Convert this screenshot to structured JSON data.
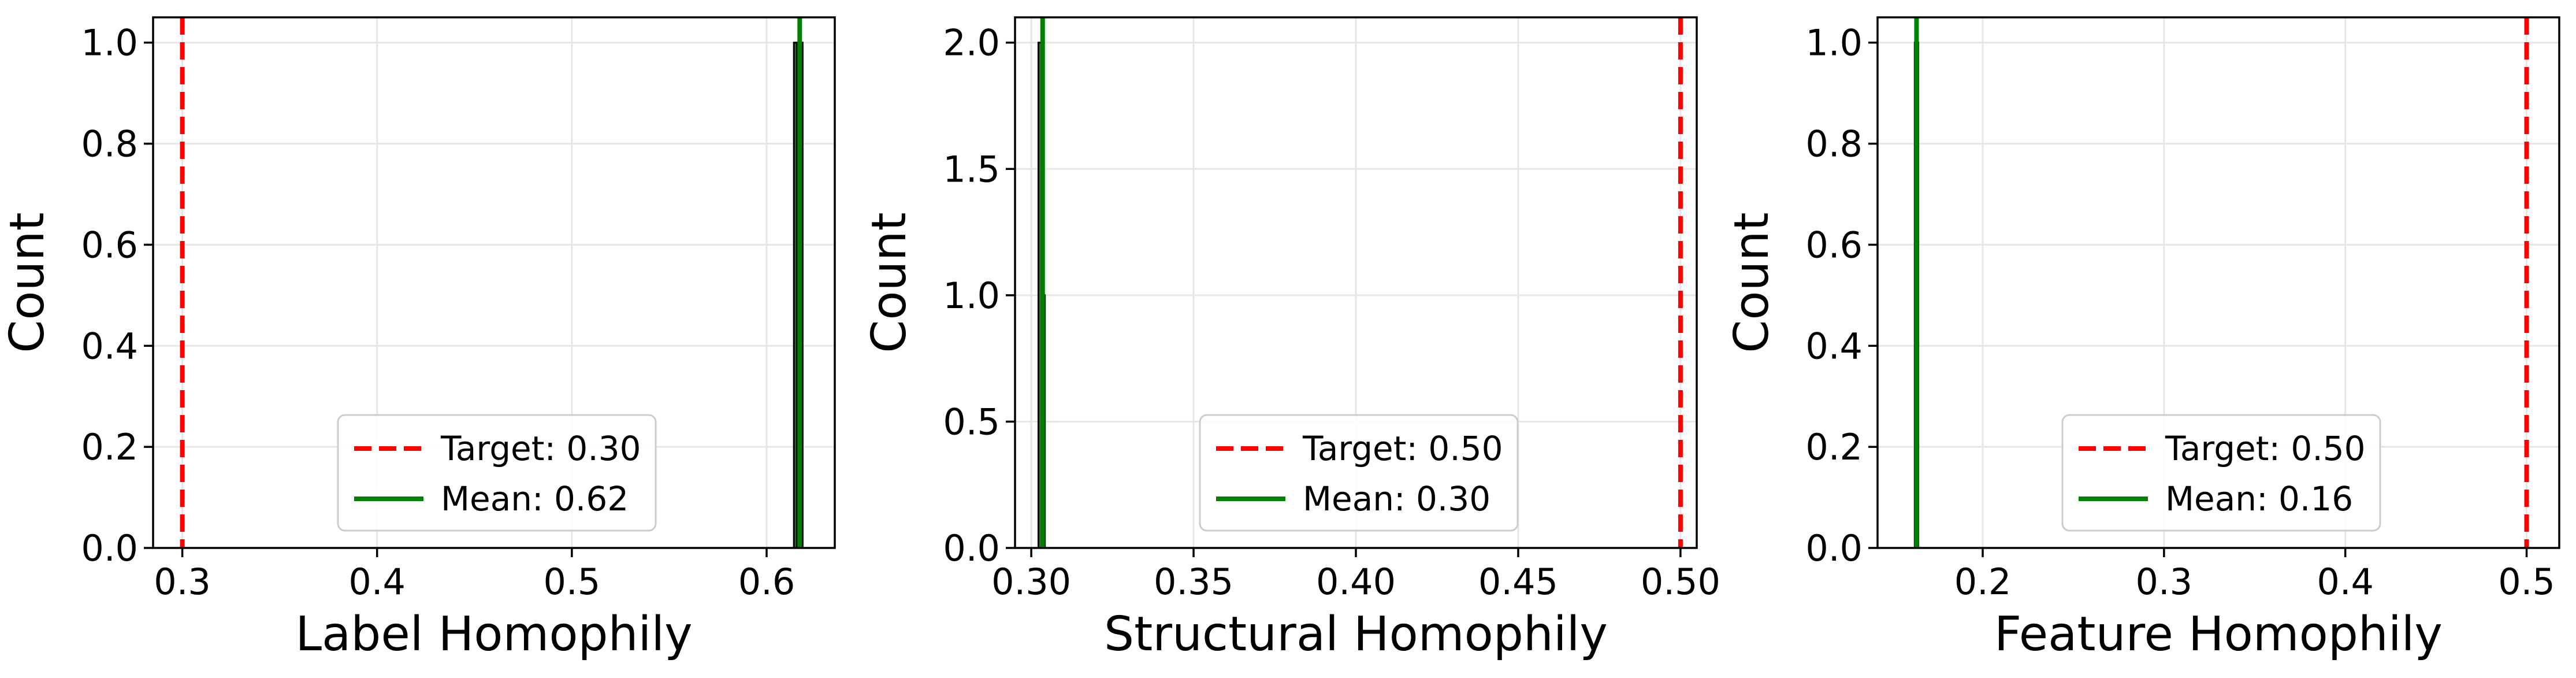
{
  "chart_data": [
    {
      "type": "bar",
      "xlabel": "Label Homophily",
      "ylabel": "Count",
      "xlim": [
        0.285,
        0.635
      ],
      "ylim": [
        0,
        1.05
      ],
      "xticks": [
        0.3,
        0.4,
        0.5,
        0.6
      ],
      "xtick_labels": [
        "0.3",
        "0.4",
        "0.5",
        "0.6"
      ],
      "yticks": [
        0.0,
        0.2,
        0.4,
        0.6,
        0.8,
        1.0
      ],
      "ytick_labels": [
        "0.0",
        "0.2",
        "0.4",
        "0.6",
        "0.8",
        "1.0"
      ],
      "grid": true,
      "legend_position": "lower-center",
      "bars": [
        {
          "x0": 0.614,
          "x1": 0.6155,
          "value": 1.0
        },
        {
          "x0": 0.6155,
          "x1": 0.617,
          "value": 1.0
        },
        {
          "x0": 0.617,
          "x1": 0.6185,
          "value": 1.0
        }
      ],
      "target": {
        "value": 0.3,
        "label": "Target: 0.30"
      },
      "mean": {
        "value": 0.617,
        "label": "Mean: 0.62"
      }
    },
    {
      "type": "bar",
      "xlabel": "Structural Homophily",
      "ylabel": "Count",
      "xlim": [
        0.295,
        0.505
      ],
      "ylim": [
        0,
        2.1
      ],
      "xticks": [
        0.3,
        0.35,
        0.4,
        0.45,
        0.5
      ],
      "xtick_labels": [
        "0.30",
        "0.35",
        "0.40",
        "0.45",
        "0.50"
      ],
      "yticks": [
        0.0,
        0.5,
        1.0,
        1.5,
        2.0
      ],
      "ytick_labels": [
        "0.0",
        "0.5",
        "1.0",
        "1.5",
        "2.0"
      ],
      "grid": true,
      "legend_position": "lower-center",
      "bars": [
        {
          "x0": 0.3022,
          "x1": 0.3032,
          "value": 2.0
        },
        {
          "x0": 0.3032,
          "x1": 0.3042,
          "value": 1.0
        }
      ],
      "target": {
        "value": 0.5,
        "label": "Target: 0.50"
      },
      "mean": {
        "value": 0.3035,
        "label": "Mean: 0.30"
      }
    },
    {
      "type": "bar",
      "xlabel": "Feature Homophily",
      "ylabel": "Count",
      "xlim": [
        0.142,
        0.518
      ],
      "ylim": [
        0,
        1.05
      ],
      "xticks": [
        0.2,
        0.3,
        0.4,
        0.5
      ],
      "xtick_labels": [
        "0.2",
        "0.3",
        "0.4",
        "0.5"
      ],
      "yticks": [
        0.0,
        0.2,
        0.4,
        0.6,
        0.8,
        1.0
      ],
      "ytick_labels": [
        "0.0",
        "0.2",
        "0.4",
        "0.6",
        "0.8",
        "1.0"
      ],
      "grid": true,
      "legend_position": "lower-center",
      "bars": [
        {
          "x0": 0.1625,
          "x1": 0.1635,
          "value": 1.0
        },
        {
          "x0": 0.1635,
          "x1": 0.1645,
          "value": 1.0
        }
      ],
      "target": {
        "value": 0.5,
        "label": "Target: 0.50"
      },
      "mean": {
        "value": 0.1635,
        "label": "Mean: 0.16"
      }
    }
  ],
  "colors": {
    "target_line": "#ff0000",
    "mean_line": "#008000",
    "bar_fill": "#2e7d32",
    "bar_edge": "#000000",
    "grid": "#e6e6e6",
    "axis": "#000000"
  }
}
